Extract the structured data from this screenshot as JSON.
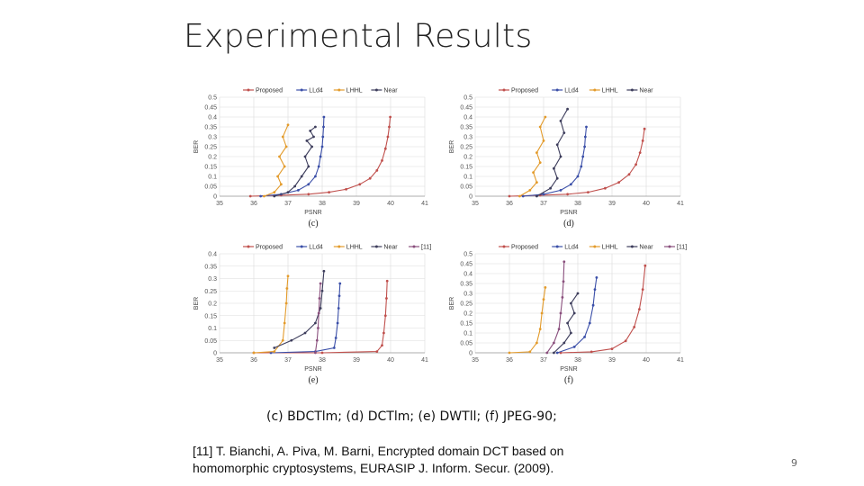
{
  "slide": {
    "title": "Experimental Results",
    "caption": "(c) BDCTlm; (d) DCTlm; (e) DWTll; (f) JPEG-90;",
    "reference": "[11] T. Bianchi, A. Piva, M. Barni, Encrypted domain DCT based on homomorphic cryptosystems, EURASIP J. Inform. Secur. (2009).",
    "page_number": "9"
  },
  "colors": {
    "Proposed": "#c0504d",
    "LLd4": "#3b4fa8",
    "LHHL": "#e39b2b",
    "Near": "#3d3d5c",
    "[11]": "#8a4f7d"
  },
  "chart_data": [
    {
      "type": "line",
      "sub_label": "(c)",
      "xlabel": "PSNR",
      "ylabel": "BER",
      "xlim": [
        35,
        41
      ],
      "ylim": [
        0,
        0.5
      ],
      "xticks": [
        "35",
        "36",
        "37",
        "38",
        "39",
        "40",
        "41"
      ],
      "yticks": [
        "0",
        "0.05",
        "0.1",
        "0.15",
        "0.2",
        "0.25",
        "0.3",
        "0.35",
        "0.4",
        "0.45",
        "0.5"
      ],
      "grid": true,
      "legend_position": "top",
      "series": [
        {
          "name": "Proposed",
          "x": [
            35.9,
            36.8,
            37.6,
            38.2,
            38.7,
            39.1,
            39.4,
            39.6,
            39.75,
            39.85,
            39.92,
            39.96,
            39.99
          ],
          "y": [
            0,
            0.005,
            0.01,
            0.02,
            0.035,
            0.06,
            0.09,
            0.13,
            0.18,
            0.24,
            0.3,
            0.35,
            0.4
          ]
        },
        {
          "name": "LLd4",
          "x": [
            36.2,
            36.8,
            37.3,
            37.6,
            37.8,
            37.9,
            37.95,
            38.0,
            38.02,
            38.04,
            38.05
          ],
          "y": [
            0,
            0.01,
            0.03,
            0.06,
            0.1,
            0.15,
            0.2,
            0.25,
            0.3,
            0.35,
            0.4
          ]
        },
        {
          "name": "LHHL",
          "x": [
            36.3,
            36.6,
            36.8,
            36.7,
            36.9,
            36.75,
            36.95,
            36.85,
            37.0
          ],
          "y": [
            0,
            0.02,
            0.06,
            0.1,
            0.15,
            0.2,
            0.25,
            0.3,
            0.36
          ]
        },
        {
          "name": "Near",
          "x": [
            36.6,
            37.0,
            37.2,
            37.4,
            37.6,
            37.5,
            37.7,
            37.55,
            37.75,
            37.65,
            37.8
          ],
          "y": [
            0,
            0.02,
            0.05,
            0.1,
            0.15,
            0.2,
            0.25,
            0.28,
            0.3,
            0.33,
            0.35
          ]
        }
      ]
    },
    {
      "type": "line",
      "sub_label": "(d)",
      "xlabel": "PSNR",
      "ylabel": "BER",
      "xlim": [
        35,
        41
      ],
      "ylim": [
        0,
        0.5
      ],
      "xticks": [
        "35",
        "36",
        "37",
        "38",
        "39",
        "40",
        "41"
      ],
      "yticks": [
        "0",
        "0.05",
        "0.1",
        "0.15",
        "0.2",
        "0.25",
        "0.3",
        "0.35",
        "0.4",
        "0.45",
        "0.5"
      ],
      "grid": true,
      "legend_position": "top",
      "series": [
        {
          "name": "Proposed",
          "x": [
            36.0,
            36.9,
            37.7,
            38.3,
            38.8,
            39.2,
            39.5,
            39.7,
            39.82,
            39.9,
            39.95
          ],
          "y": [
            0,
            0.005,
            0.01,
            0.02,
            0.04,
            0.07,
            0.11,
            0.16,
            0.22,
            0.28,
            0.34
          ]
        },
        {
          "name": "LLd4",
          "x": [
            36.4,
            37.0,
            37.5,
            37.8,
            38.0,
            38.1,
            38.15,
            38.2,
            38.22,
            38.25
          ],
          "y": [
            0,
            0.01,
            0.03,
            0.06,
            0.1,
            0.15,
            0.2,
            0.25,
            0.3,
            0.35
          ]
        },
        {
          "name": "LHHL",
          "x": [
            36.3,
            36.6,
            36.8,
            36.7,
            36.9,
            36.8,
            37.0,
            36.9,
            37.05
          ],
          "y": [
            0,
            0.03,
            0.07,
            0.12,
            0.17,
            0.22,
            0.28,
            0.35,
            0.4
          ]
        },
        {
          "name": "Near",
          "x": [
            36.8,
            37.2,
            37.4,
            37.3,
            37.5,
            37.4,
            37.6,
            37.5,
            37.7
          ],
          "y": [
            0,
            0.04,
            0.09,
            0.14,
            0.2,
            0.26,
            0.32,
            0.38,
            0.44
          ]
        }
      ]
    },
    {
      "type": "line",
      "sub_label": "(e)",
      "xlabel": "PSNR",
      "ylabel": "BER",
      "xlim": [
        35,
        41
      ],
      "ylim": [
        0,
        0.4
      ],
      "xticks": [
        "35",
        "36",
        "37",
        "38",
        "39",
        "40",
        "41"
      ],
      "yticks": [
        "0",
        "0.05",
        "0.1",
        "0.15",
        "0.2",
        "0.25",
        "0.3",
        "0.35",
        "0.4"
      ],
      "grid": true,
      "legend_position": "top",
      "series": [
        {
          "name": "Proposed",
          "x": [
            36.0,
            38.0,
            39.6,
            39.75,
            39.8,
            39.85,
            39.88,
            39.9
          ],
          "y": [
            0,
            0,
            0.005,
            0.03,
            0.08,
            0.15,
            0.22,
            0.29
          ]
        },
        {
          "name": "LLd4",
          "x": [
            36.5,
            37.8,
            38.35,
            38.4,
            38.45,
            38.48,
            38.5,
            38.52
          ],
          "y": [
            0,
            0.005,
            0.02,
            0.06,
            0.12,
            0.18,
            0.23,
            0.28
          ]
        },
        {
          "name": "LHHL",
          "x": [
            36.0,
            36.6,
            36.85,
            36.9,
            36.95,
            36.97,
            37.0
          ],
          "y": [
            0,
            0.005,
            0.05,
            0.12,
            0.2,
            0.26,
            0.31
          ]
        },
        {
          "name": "Near",
          "x": [
            36.6,
            37.1,
            37.5,
            37.8,
            37.95,
            38.0,
            38.05
          ],
          "y": [
            0.02,
            0.05,
            0.08,
            0.12,
            0.18,
            0.25,
            0.33
          ]
        },
        {
          "name": "[11]",
          "x": [
            37.8,
            37.85,
            37.88,
            37.9,
            37.92,
            37.95
          ],
          "y": [
            0,
            0.05,
            0.1,
            0.16,
            0.22,
            0.28
          ]
        }
      ]
    },
    {
      "type": "line",
      "sub_label": "(f)",
      "xlabel": "PSNR",
      "ylabel": "BER",
      "xlim": [
        35,
        41
      ],
      "ylim": [
        0,
        0.5
      ],
      "xticks": [
        "35",
        "36",
        "37",
        "38",
        "39",
        "40",
        "41"
      ],
      "yticks": [
        "0",
        "0.05",
        "0.1",
        "0.15",
        "0.2",
        "0.25",
        "0.3",
        "0.35",
        "0.4",
        "0.45",
        "0.5"
      ],
      "grid": true,
      "legend_position": "top",
      "series": [
        {
          "name": "Proposed",
          "x": [
            37.5,
            38.4,
            39.0,
            39.4,
            39.65,
            39.8,
            39.9,
            39.97
          ],
          "y": [
            0,
            0.005,
            0.02,
            0.06,
            0.13,
            0.22,
            0.32,
            0.44
          ]
        },
        {
          "name": "LLd4",
          "x": [
            37.4,
            37.9,
            38.2,
            38.35,
            38.45,
            38.5,
            38.55
          ],
          "y": [
            0,
            0.03,
            0.08,
            0.15,
            0.24,
            0.32,
            0.38
          ]
        },
        {
          "name": "LHHL",
          "x": [
            36.0,
            36.6,
            36.8,
            36.9,
            36.95,
            37.0,
            37.05
          ],
          "y": [
            0,
            0.005,
            0.05,
            0.12,
            0.2,
            0.27,
            0.33
          ]
        },
        {
          "name": "Near",
          "x": [
            37.3,
            37.6,
            37.8,
            37.7,
            37.9,
            37.8,
            38.0
          ],
          "y": [
            0,
            0.05,
            0.1,
            0.15,
            0.2,
            0.25,
            0.3
          ]
        },
        {
          "name": "[11]",
          "x": [
            37.1,
            37.3,
            37.45,
            37.5,
            37.55,
            37.58,
            37.6
          ],
          "y": [
            0,
            0.05,
            0.12,
            0.2,
            0.28,
            0.36,
            0.46
          ]
        }
      ]
    }
  ]
}
